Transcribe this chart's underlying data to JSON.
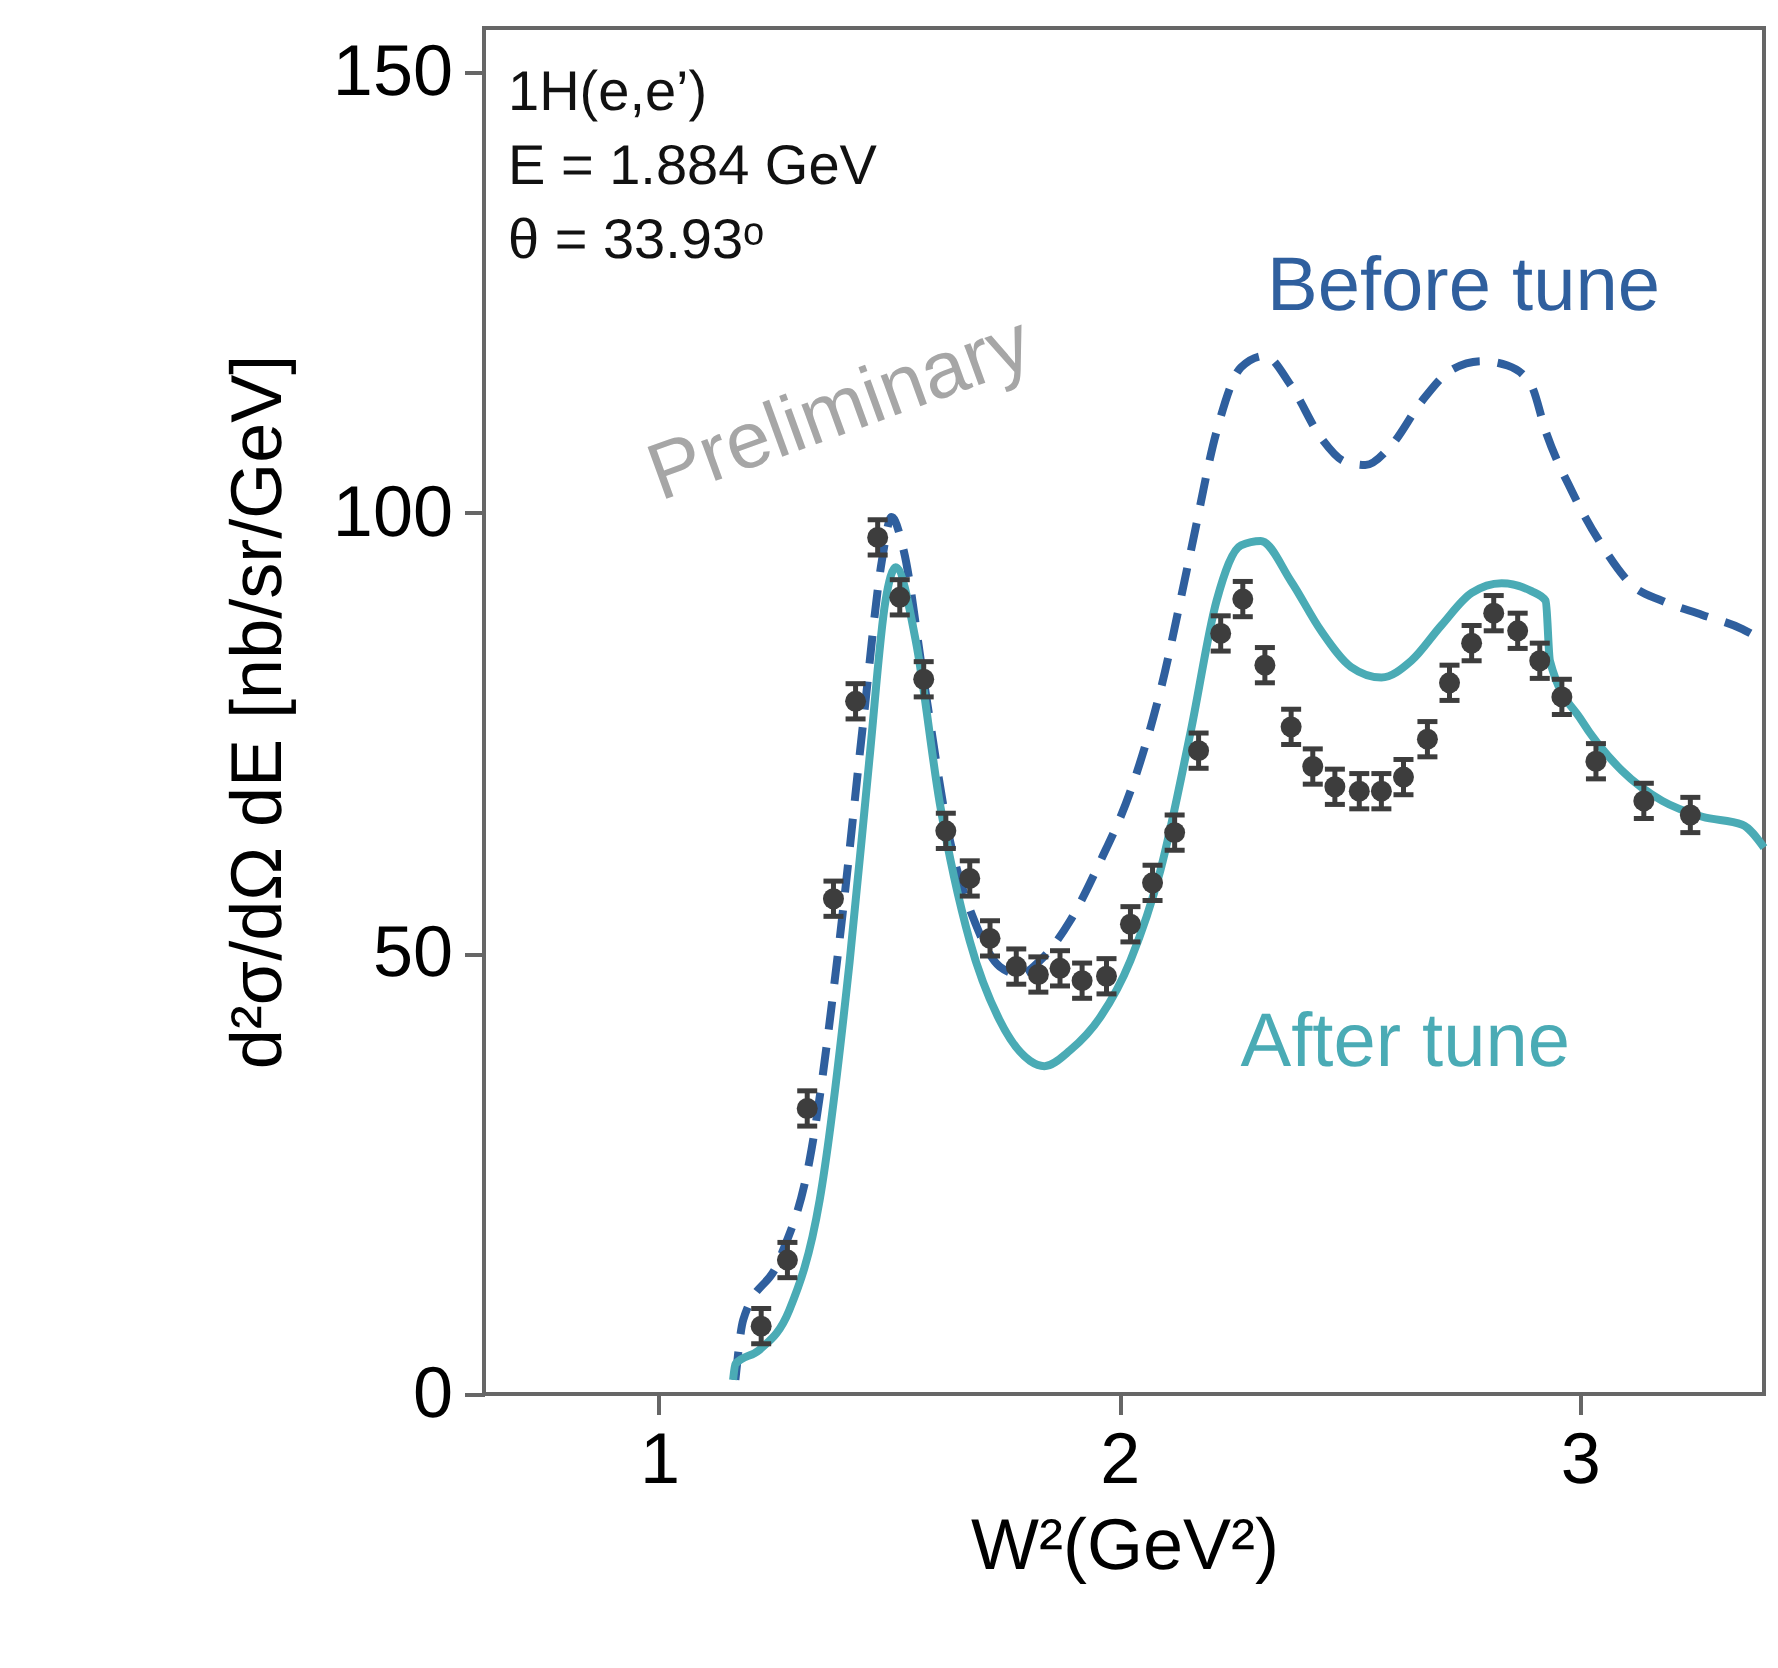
{
  "chart_data": {
    "type": "line",
    "xlabel": "W²(GeV²)",
    "ylabel": "d²σ/dΩ dE [nb/sr/GeV]",
    "xlim": [
      0.62,
      3.4
    ],
    "xticks": [
      1,
      2,
      3
    ],
    "ylim": [
      0,
      155
    ],
    "yticks": [
      0,
      50,
      100,
      150
    ],
    "annotations": [
      "1H(e,e’)",
      "E = 1.884 GeV",
      "θ = 33.93ᵒ",
      "Preliminary"
    ],
    "series": [
      {
        "name": "Before tune",
        "line_style": "dashed",
        "color": "#2f5f9e",
        "x": [
          1.166,
          1.183,
          1.261,
          1.327,
          1.392,
          1.444,
          1.484,
          1.505,
          1.532,
          1.575,
          1.632,
          1.688,
          1.74,
          1.784,
          1.828,
          1.893,
          1.959,
          2.024,
          2.089,
          2.155,
          2.211,
          2.264,
          2.316,
          2.373,
          2.438,
          2.49,
          2.534,
          2.59,
          2.656,
          2.721,
          2.787,
          2.843,
          2.895,
          2.926,
          2.983,
          3.048,
          3.113,
          3.179,
          3.266,
          3.353,
          3.4
        ],
        "values": [
          1.6,
          8.4,
          15.2,
          26.5,
          51.4,
          76.4,
          94.5,
          99.5,
          95.6,
          81,
          62.8,
          53.3,
          48.5,
          47.6,
          49.2,
          53.7,
          60.5,
          68.4,
          79.8,
          95.6,
          109.2,
          116.5,
          117.8,
          114.4,
          108.5,
          105.8,
          105.4,
          107.6,
          112.6,
          116.2,
          117.2,
          116.7,
          114.4,
          109.2,
          102.4,
          96.3,
          91.8,
          90,
          88.4,
          86.8,
          85.4
        ]
      },
      {
        "name": "After tune",
        "line_style": "solid",
        "color": "#4aabb5",
        "x": [
          1.161,
          1.166,
          1.218,
          1.283,
          1.349,
          1.414,
          1.457,
          1.492,
          1.514,
          1.558,
          1.61,
          1.675,
          1.74,
          1.806,
          1.837,
          1.893,
          1.959,
          2.024,
          2.089,
          2.155,
          2.211,
          2.264,
          2.307,
          2.373,
          2.438,
          2.503,
          2.569,
          2.634,
          2.699,
          2.765,
          2.83,
          2.895,
          2.926,
          2.935,
          3.004,
          3.092,
          3.179,
          3.266,
          3.353,
          3.4
        ],
        "values": [
          1.6,
          3.4,
          5,
          9.5,
          22,
          49,
          72,
          90,
          93.8,
          85.4,
          67,
          51.4,
          42.4,
          37.8,
          37.2,
          39,
          42.8,
          49.2,
          59.4,
          75.2,
          90,
          96.3,
          96.8,
          92.2,
          86.6,
          82.5,
          81.3,
          83.2,
          87.2,
          90.9,
          92,
          91.1,
          90,
          83.2,
          76.4,
          70.7,
          67.3,
          65.5,
          64.6,
          62
        ]
      },
      {
        "type": "scatter",
        "marker": "circle",
        "color": "#3d3d3d",
        "x": [
          1.222,
          1.279,
          1.322,
          1.379,
          1.427,
          1.475,
          1.523,
          1.575,
          1.623,
          1.675,
          1.719,
          1.776,
          1.824,
          1.871,
          1.919,
          1.972,
          2.024,
          2.072,
          2.12,
          2.172,
          2.22,
          2.268,
          2.316,
          2.373,
          2.42,
          2.468,
          2.521,
          2.569,
          2.617,
          2.669,
          2.717,
          2.765,
          2.813,
          2.865,
          2.913,
          2.961,
          3.035,
          3.139,
          3.24
        ],
        "values": [
          7.7,
          15.2,
          32.4,
          56.2,
          78.6,
          97.2,
          90.4,
          81.1,
          63.9,
          58.5,
          51.7,
          48.5,
          47.6,
          48.3,
          46.9,
          47.4,
          53.3,
          58,
          63.7,
          73,
          86.3,
          90.2,
          82.7,
          75.7,
          71.2,
          68.9,
          68.4,
          68.4,
          70,
          74.3,
          80.7,
          85.2,
          88.6,
          86.6,
          83.2,
          79.1,
          71.8,
          67.3,
          65.7
        ],
        "errors": [
          2,
          2,
          2,
          2,
          2,
          2,
          2,
          2,
          2,
          2,
          2,
          2,
          2,
          2,
          2,
          2,
          2,
          2,
          2,
          2,
          2,
          2,
          2,
          2,
          2,
          2,
          2,
          2,
          2,
          2,
          2,
          2,
          2,
          2,
          2,
          2,
          2,
          2,
          2
        ]
      }
    ]
  }
}
